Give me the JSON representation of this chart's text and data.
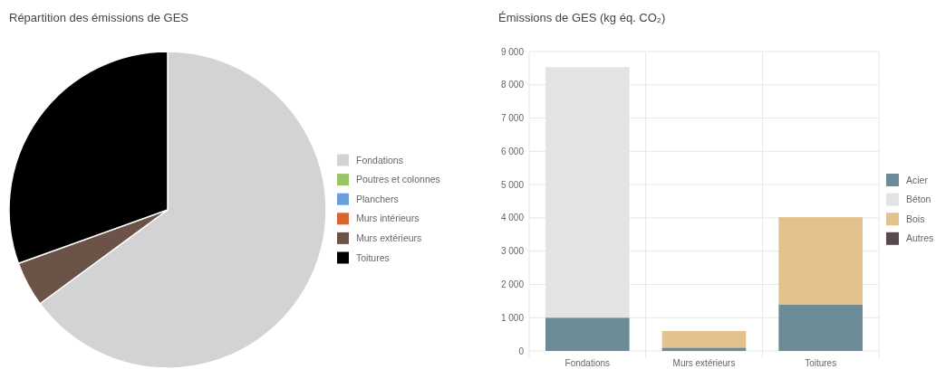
{
  "chart_data": [
    {
      "type": "pie",
      "title": "Répartition des émissions de GES",
      "categories": [
        "Fondations",
        "Poutres et colonnes",
        "Planchers",
        "Murs intérieurs",
        "Murs extérieurs",
        "Toitures"
      ],
      "values": [
        64.9,
        0,
        0,
        0,
        4.6,
        30.5
      ],
      "colors": [
        "#d3d3d3",
        "#9bc46a",
        "#6a9fdc",
        "#d8652c",
        "#6b5347",
        "#000000"
      ],
      "legend": "right"
    },
    {
      "type": "bar",
      "title": "Émissions de GES (kg éq. CO₂)",
      "categories": [
        "Fondations",
        "Murs extérieurs",
        "Toitures"
      ],
      "stacked": true,
      "legend": "right",
      "grid": true,
      "ylim": [
        0,
        9000
      ],
      "yticks": [
        0,
        {
          "value": 1000,
          "label": "1 000"
        },
        {
          "value": 2000,
          "label": "2 000"
        },
        {
          "value": 3000,
          "label": "3 000"
        },
        {
          "value": 4000,
          "label": "4 000"
        },
        {
          "value": 5000,
          "label": "5 000"
        },
        {
          "value": 6000,
          "label": "6 000"
        },
        {
          "value": 7000,
          "label": "7 000"
        },
        {
          "value": 8000,
          "label": "8 000"
        },
        {
          "value": 9000,
          "label": "9 000"
        }
      ],
      "series": [
        {
          "name": "Acier",
          "color": "#6b8b96",
          "values": [
            1000,
            100,
            1400
          ]
        },
        {
          "name": "Béton",
          "color": "#e3e3e3",
          "values": [
            7530,
            0,
            0
          ]
        },
        {
          "name": "Bois",
          "color": "#e3c28e",
          "values": [
            0,
            500,
            2620
          ]
        },
        {
          "name": "Autres",
          "color": "#584850",
          "values": [
            0,
            0,
            0
          ]
        }
      ]
    }
  ]
}
